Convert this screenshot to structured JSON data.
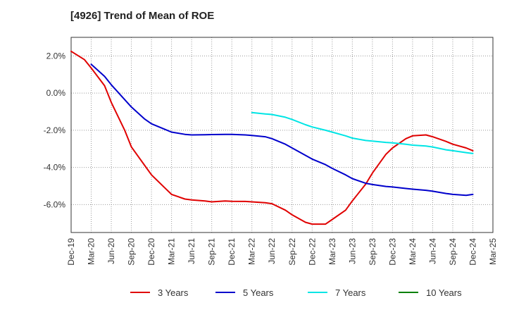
{
  "chart_data": {
    "type": "line",
    "title": "[4926]  Trend of Mean of ROE",
    "x_ticks": [
      "Dec-19",
      "Mar-20",
      "Jun-20",
      "Sep-20",
      "Dec-20",
      "Mar-21",
      "Jun-21",
      "Sep-21",
      "Dec-21",
      "Mar-22",
      "Jun-22",
      "Sep-22",
      "Dec-22",
      "Mar-23",
      "Jun-23",
      "Sep-23",
      "Dec-23",
      "Mar-24",
      "Jun-24",
      "Sep-24",
      "Dec-24",
      "Mar-25"
    ],
    "y_ticks": [
      2.0,
      0.0,
      -2.0,
      -4.0,
      -6.0
    ],
    "y_tick_labels": [
      "2.0%",
      "0.0%",
      "-2.0%",
      "-4.0%",
      "-6.0%"
    ],
    "ylim": [
      -7.5,
      3.0
    ],
    "grid": true,
    "legend_position": "bottom",
    "series": [
      {
        "name": "3 Years",
        "color": "#e00000",
        "points": [
          [
            "Dec-19",
            2.25
          ],
          [
            "Feb-20",
            1.8
          ],
          [
            "Mar-20",
            1.35
          ],
          [
            "May-20",
            0.4
          ],
          [
            "Jun-20",
            -0.5
          ],
          [
            "Aug-20",
            -2.0
          ],
          [
            "Sep-20",
            -2.9
          ],
          [
            "Nov-20",
            -3.9
          ],
          [
            "Dec-20",
            -4.4
          ],
          [
            "Feb-21",
            -5.1
          ],
          [
            "Mar-21",
            -5.45
          ],
          [
            "May-21",
            -5.7
          ],
          [
            "Jun-21",
            -5.75
          ],
          [
            "Aug-21",
            -5.8
          ],
          [
            "Sep-21",
            -5.85
          ],
          [
            "Nov-21",
            -5.8
          ],
          [
            "Dec-21",
            -5.82
          ],
          [
            "Feb-22",
            -5.83
          ],
          [
            "Mar-22",
            -5.85
          ],
          [
            "May-22",
            -5.9
          ],
          [
            "Jun-22",
            -5.95
          ],
          [
            "Aug-22",
            -6.3
          ],
          [
            "Sep-22",
            -6.55
          ],
          [
            "Nov-22",
            -6.95
          ],
          [
            "Dec-22",
            -7.05
          ],
          [
            "Feb-23",
            -7.05
          ],
          [
            "Mar-23",
            -6.8
          ],
          [
            "May-23",
            -6.3
          ],
          [
            "Jun-23",
            -5.8
          ],
          [
            "Aug-23",
            -4.9
          ],
          [
            "Sep-23",
            -4.3
          ],
          [
            "Nov-23",
            -3.3
          ],
          [
            "Dec-23",
            -2.95
          ],
          [
            "Feb-24",
            -2.45
          ],
          [
            "Mar-24",
            -2.3
          ],
          [
            "May-24",
            -2.25
          ],
          [
            "Jun-24",
            -2.35
          ],
          [
            "Aug-24",
            -2.6
          ],
          [
            "Sep-24",
            -2.75
          ],
          [
            "Nov-24",
            -2.95
          ],
          [
            "Dec-24",
            -3.1
          ]
        ]
      },
      {
        "name": "5 Years",
        "color": "#0000cc",
        "points": [
          [
            "Mar-20",
            1.55
          ],
          [
            "May-20",
            0.9
          ],
          [
            "Jun-20",
            0.45
          ],
          [
            "Aug-20",
            -0.35
          ],
          [
            "Sep-20",
            -0.75
          ],
          [
            "Nov-20",
            -1.4
          ],
          [
            "Dec-20",
            -1.65
          ],
          [
            "Feb-21",
            -1.95
          ],
          [
            "Mar-21",
            -2.1
          ],
          [
            "May-21",
            -2.22
          ],
          [
            "Jun-21",
            -2.25
          ],
          [
            "Aug-21",
            -2.24
          ],
          [
            "Sep-21",
            -2.23
          ],
          [
            "Nov-21",
            -2.22
          ],
          [
            "Dec-21",
            -2.22
          ],
          [
            "Feb-22",
            -2.25
          ],
          [
            "Mar-22",
            -2.28
          ],
          [
            "May-22",
            -2.35
          ],
          [
            "Jun-22",
            -2.45
          ],
          [
            "Aug-22",
            -2.75
          ],
          [
            "Sep-22",
            -2.95
          ],
          [
            "Nov-22",
            -3.35
          ],
          [
            "Dec-22",
            -3.55
          ],
          [
            "Feb-23",
            -3.85
          ],
          [
            "Mar-23",
            -4.05
          ],
          [
            "May-23",
            -4.4
          ],
          [
            "Jun-23",
            -4.6
          ],
          [
            "Aug-23",
            -4.85
          ],
          [
            "Sep-23",
            -4.92
          ],
          [
            "Nov-23",
            -5.02
          ],
          [
            "Dec-23",
            -5.05
          ],
          [
            "Feb-24",
            -5.13
          ],
          [
            "Mar-24",
            -5.17
          ],
          [
            "May-24",
            -5.23
          ],
          [
            "Jun-24",
            -5.28
          ],
          [
            "Aug-24",
            -5.4
          ],
          [
            "Sep-24",
            -5.45
          ],
          [
            "Nov-24",
            -5.5
          ],
          [
            "Dec-24",
            -5.45
          ]
        ]
      },
      {
        "name": "7 Years",
        "color": "#00e5e5",
        "points": [
          [
            "Mar-22",
            -1.05
          ],
          [
            "May-22",
            -1.12
          ],
          [
            "Jun-22",
            -1.15
          ],
          [
            "Aug-22",
            -1.3
          ],
          [
            "Sep-22",
            -1.42
          ],
          [
            "Nov-22",
            -1.7
          ],
          [
            "Dec-22",
            -1.82
          ],
          [
            "Feb-23",
            -2.0
          ],
          [
            "Mar-23",
            -2.1
          ],
          [
            "May-23",
            -2.3
          ],
          [
            "Jun-23",
            -2.42
          ],
          [
            "Aug-23",
            -2.55
          ],
          [
            "Sep-23",
            -2.58
          ],
          [
            "Nov-23",
            -2.65
          ],
          [
            "Dec-23",
            -2.68
          ],
          [
            "Feb-24",
            -2.75
          ],
          [
            "Mar-24",
            -2.8
          ],
          [
            "May-24",
            -2.85
          ],
          [
            "Jun-24",
            -2.9
          ],
          [
            "Aug-24",
            -3.05
          ],
          [
            "Sep-24",
            -3.1
          ],
          [
            "Nov-24",
            -3.2
          ],
          [
            "Dec-24",
            -3.25
          ]
        ]
      },
      {
        "name": "10 Years",
        "color": "#008000",
        "points": []
      }
    ]
  }
}
